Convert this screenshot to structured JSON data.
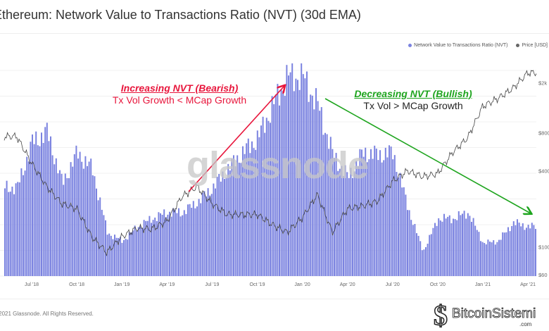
{
  "title": "Ethereum: Network Value to Transactions Ratio (NVT) (30d EMA)",
  "legend": [
    {
      "label": "Network Value to Transactions Ratio (NVT)",
      "color": "#7b83e0"
    },
    {
      "label": "Price [USD]",
      "color": "#666666"
    }
  ],
  "watermark": "glassnode",
  "annotations": {
    "bearish_heading": "Increasing NVT (Bearish)",
    "bearish_sub": "Tx Vol Growth < MCap Growth",
    "bearish_color": "#e8163c",
    "bullish_heading": "Decreasing NVT (Bullish)",
    "bullish_sub": "Tx Vol > MCap Growth",
    "bullish_color": "#1fa51f"
  },
  "footer": {
    "copyright": "© 2021 Glassnode. All Rights Reserved.",
    "logo_text": "BitcoinSistemi",
    "logo_sub": ".com"
  },
  "chart_data": {
    "type": "bar+line",
    "title": "Ethereum: Network Value to Transactions Ratio (NVT) (30d EMA)",
    "x_ticks": [
      "Jul '18",
      "Oct '18",
      "Jan '19",
      "Apr '19",
      "Jul '19",
      "Oct '19",
      "Jan '20",
      "Apr '20",
      "Jul '20",
      "Oct '20",
      "Jan '21",
      "Apr '21"
    ],
    "right_axis": {
      "scale": "log",
      "ticks": [
        "$60",
        "$100",
        "$400",
        "$800",
        "$2k"
      ],
      "tick_values": [
        60,
        100,
        400,
        800,
        2000
      ]
    },
    "grid": true,
    "legend_position": "top-right",
    "months": [
      "2018-06",
      "2018-07",
      "2018-08",
      "2018-09",
      "2018-10",
      "2018-11",
      "2018-12",
      "2019-01",
      "2019-02",
      "2019-03",
      "2019-04",
      "2019-05",
      "2019-06",
      "2019-07",
      "2019-08",
      "2019-09",
      "2019-10",
      "2019-11",
      "2019-12",
      "2020-01",
      "2020-02",
      "2020-03",
      "2020-04",
      "2020-05",
      "2020-06",
      "2020-07",
      "2020-08",
      "2020-09",
      "2020-10",
      "2020-11",
      "2020-12",
      "2021-01",
      "2021-02",
      "2021-03",
      "2021-04"
    ],
    "series": [
      {
        "name": "Network Value to Transactions Ratio (NVT)",
        "type": "bar",
        "axis": "left",
        "values": [
          43,
          65,
          70,
          45,
          60,
          52,
          21,
          17,
          24,
          28,
          31,
          31,
          36,
          43,
          52,
          60,
          67,
          83,
          97,
          97,
          83,
          59,
          48,
          60,
          59,
          60,
          33,
          12,
          28,
          28,
          31,
          16,
          17,
          26,
          24
        ]
      },
      {
        "name": "Price [USD]",
        "type": "line",
        "axis": "right",
        "values": [
          750,
          460,
          300,
          220,
          200,
          120,
          90,
          120,
          140,
          138,
          160,
          250,
          300,
          220,
          180,
          180,
          180,
          150,
          130,
          170,
          260,
          130,
          200,
          210,
          230,
          330,
          400,
          360,
          380,
          560,
          730,
          1300,
          1500,
          1800,
          2400
        ]
      }
    ]
  }
}
